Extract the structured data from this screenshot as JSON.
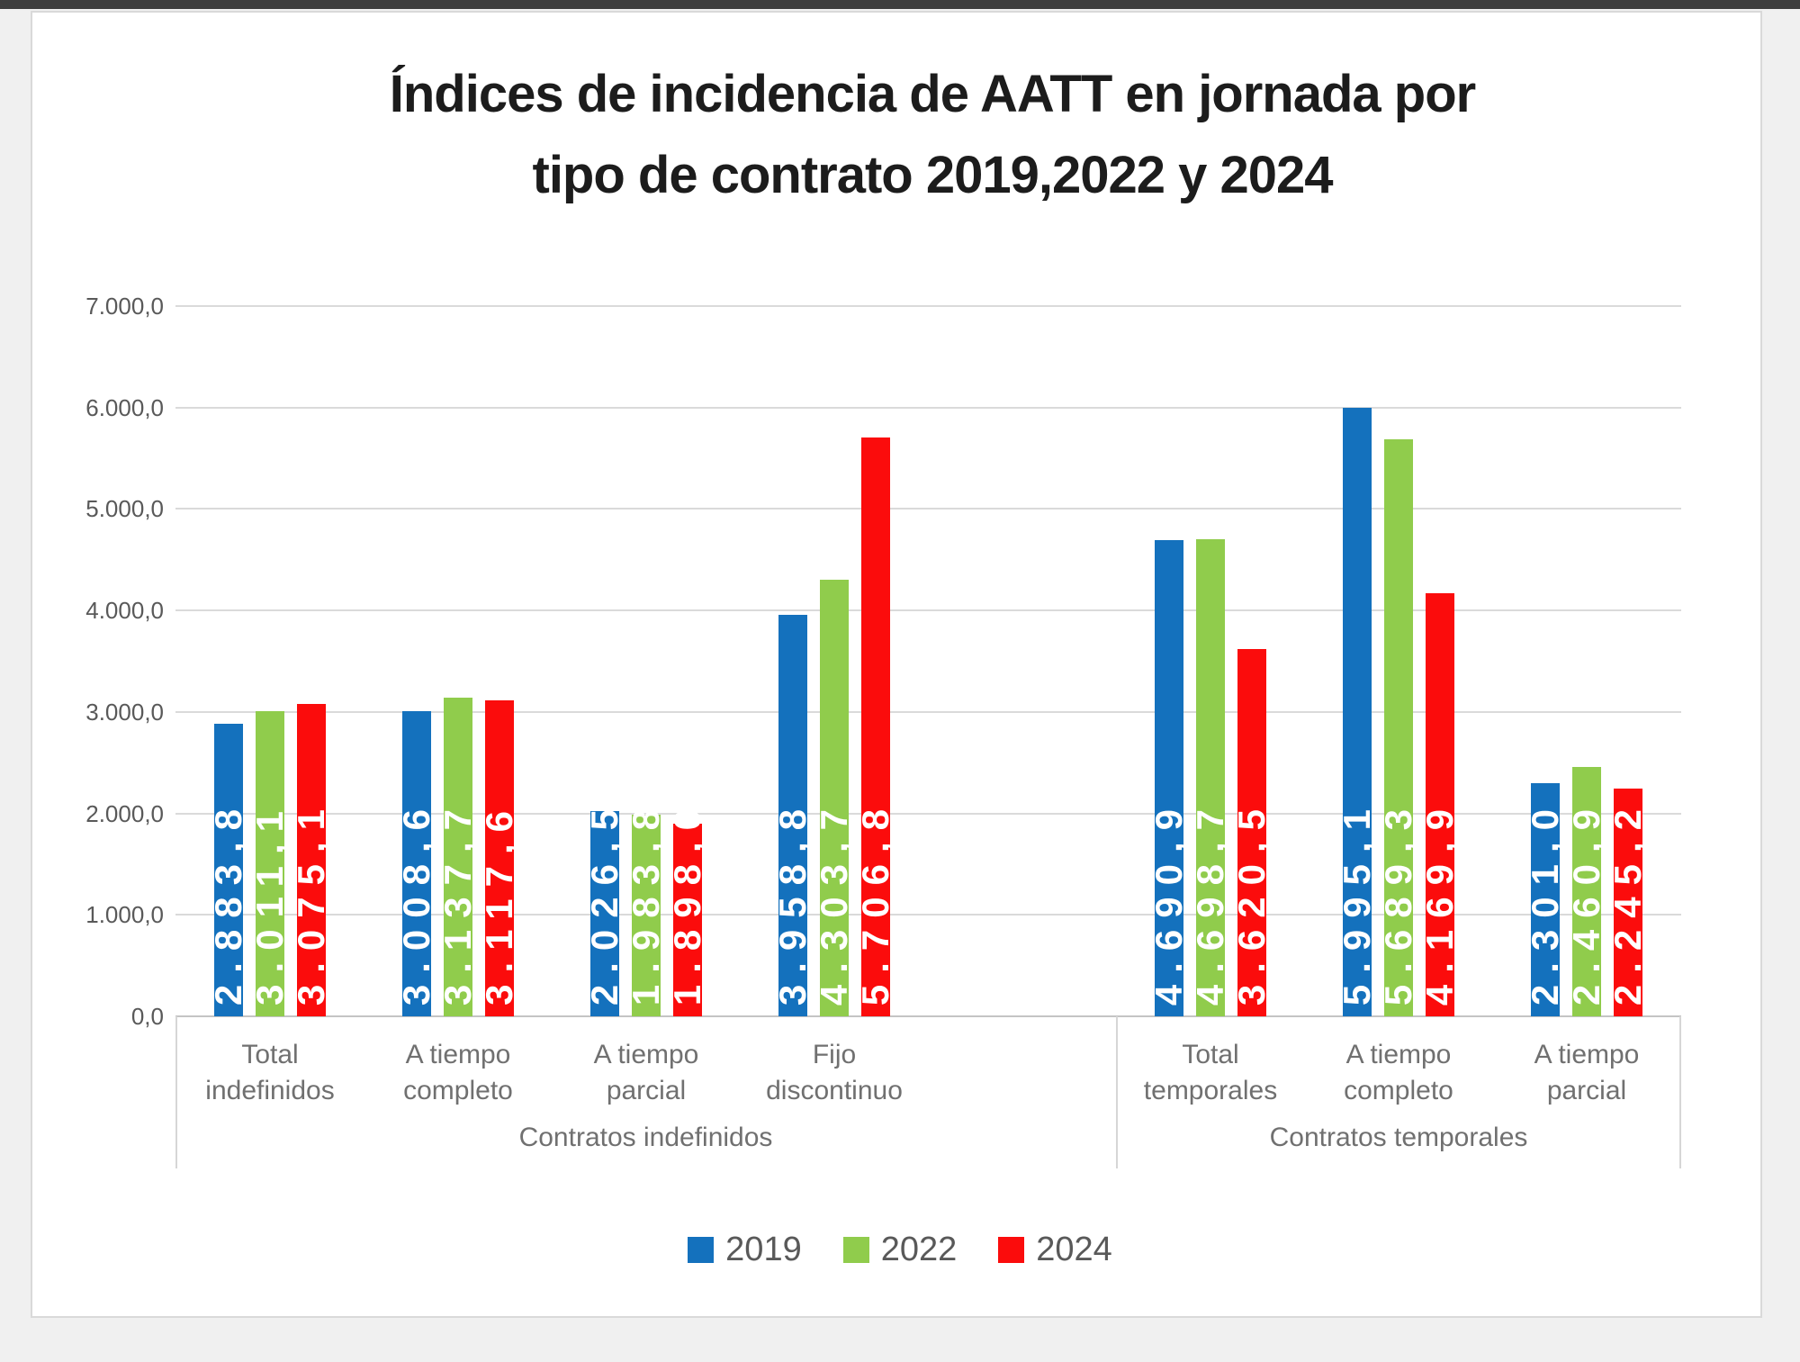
{
  "title": {
    "line1": "Índices de incidencia de AATT en jornada por",
    "line2": "tipo de contrato 2019,2022 y 2024"
  },
  "chart_data": {
    "type": "bar",
    "title": "Índices de incidencia de AATT en jornada por tipo de contrato 2019,2022 y 2024",
    "xlabel": "",
    "ylabel": "",
    "ylim": [
      0,
      7000
    ],
    "ytick_interval": 1000,
    "ytick_labels": [
      "0,0",
      "1.000,0",
      "2.000,0",
      "3.000,0",
      "4.000,0",
      "5.000,0",
      "6.000,0",
      "7.000,0"
    ],
    "grid": true,
    "legend_position": "bottom",
    "sections": [
      {
        "label": "Contratos indefinidos",
        "categories": [
          {
            "line1": "Total",
            "line2": "indefinidos"
          },
          {
            "line1": "A tiempo",
            "line2": "completo"
          },
          {
            "line1": "A tiempo",
            "line2": "parcial"
          },
          {
            "line1": "Fijo",
            "line2": "discontinuo"
          }
        ]
      },
      {
        "label": "Contratos temporales",
        "categories": [
          {
            "line1": "Total",
            "line2": "temporales"
          },
          {
            "line1": "A tiempo",
            "line2": "completo"
          },
          {
            "line1": "A tiempo",
            "line2": "parcial"
          }
        ]
      }
    ],
    "series": [
      {
        "name": "2019",
        "color": "#1471BD",
        "values": [
          2883.8,
          3008.6,
          2026.5,
          3958.8,
          4690.9,
          5995.1,
          2301.0
        ],
        "labels": [
          "2.883,8",
          "3.008,6",
          "2.026,5",
          "3.958,8",
          "4.690,9",
          "5.995,1",
          "2.301,0"
        ]
      },
      {
        "name": "2022",
        "color": "#90CC4C",
        "values": [
          3011.1,
          3137.7,
          1983.8,
          4303.7,
          4698.7,
          5689.3,
          2460.9
        ],
        "labels": [
          "3.011,1",
          "3.137,7",
          "1.983,8",
          "4.303,7",
          "4.698,7",
          "5.689,3",
          "2.460,9"
        ]
      },
      {
        "name": "2024",
        "color": "#FB0C0C",
        "values": [
          3075.1,
          3117.6,
          1898.0,
          5706.8,
          3620.5,
          4169.9,
          2245.2
        ],
        "labels": [
          "3.075,1",
          "3.117,6",
          "1.898,0",
          "5.706,8",
          "3.620,5",
          "4.169,9",
          "2.245,2"
        ]
      }
    ]
  }
}
